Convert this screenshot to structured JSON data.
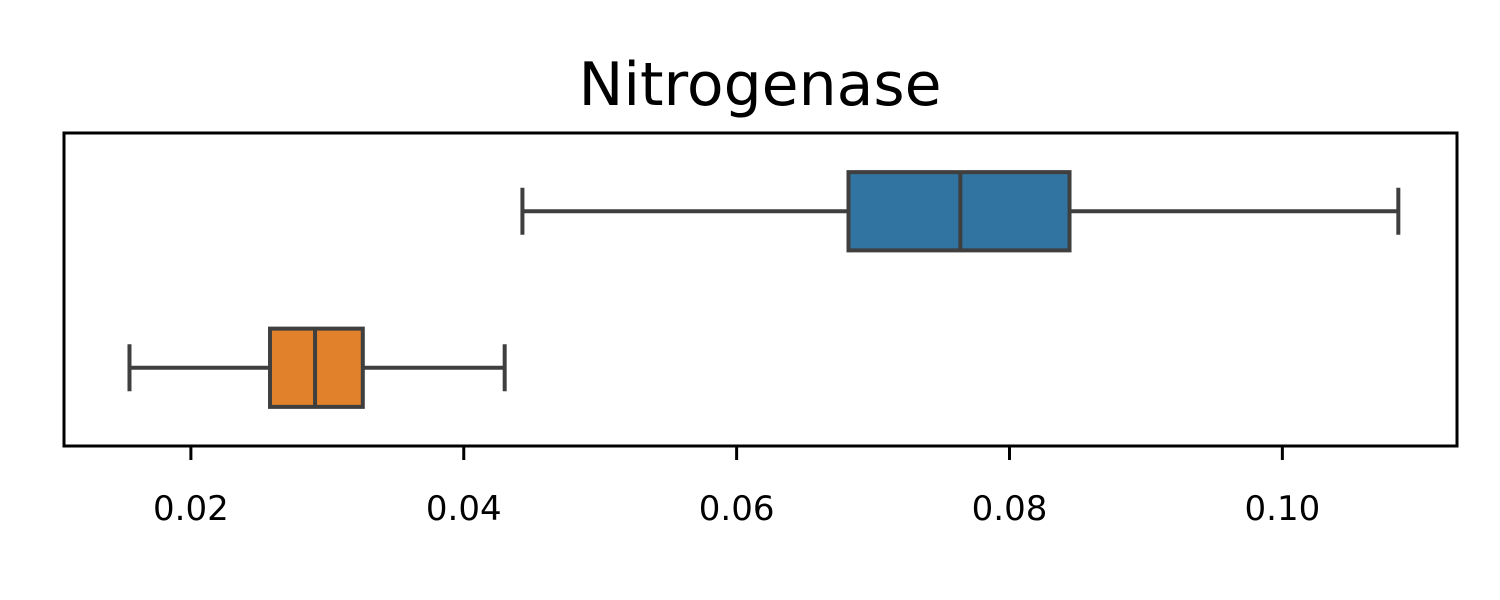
{
  "chart_data": {
    "type": "boxplot",
    "orientation": "horizontal",
    "title": "Nitrogenase",
    "xlabel": "",
    "ylabel": "",
    "xlim": [
      0.0107,
      0.1128
    ],
    "xticks": [
      0.02,
      0.04,
      0.06,
      0.08,
      0.1
    ],
    "xtick_labels": [
      "0.02",
      "0.04",
      "0.06",
      "0.08",
      "0.10"
    ],
    "grid": false,
    "series": [
      {
        "color": "#3274a1",
        "whisker_low": 0.0443,
        "q1": 0.0682,
        "median": 0.0764,
        "q3": 0.0844,
        "whisker_high": 0.1085
      },
      {
        "color": "#e1812c",
        "whisker_low": 0.0155,
        "q1": 0.0258,
        "median": 0.0291,
        "q3": 0.0326,
        "whisker_high": 0.043
      }
    ]
  }
}
